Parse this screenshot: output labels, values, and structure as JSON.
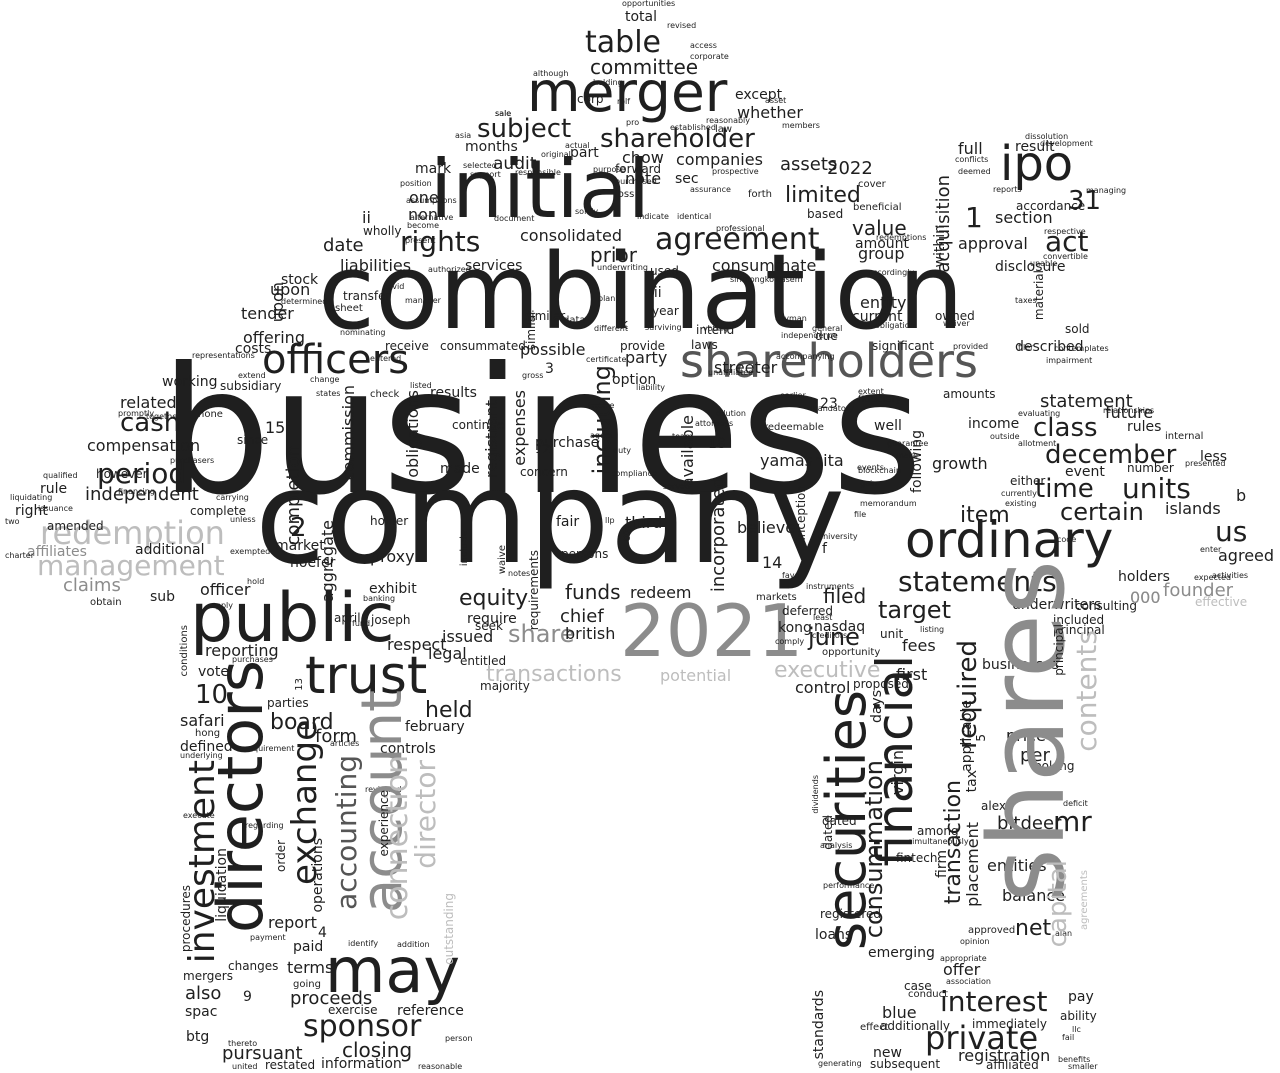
{
  "words": {
    "business": "business",
    "company": "company",
    "combination": "combination",
    "initial": "initial",
    "shares": "shares",
    "merger": "merger",
    "ipo": "ipo",
    "public": "public",
    "y2021": "2021",
    "trust": "trust",
    "may": "may",
    "directors": "directors",
    "account": "account",
    "securities": "securities",
    "financial": "financial",
    "officers": "officers",
    "shareholders": "shareholders",
    "ordinary": "ordinary",
    "agreement": "agreement",
    "rights": "rights",
    "subject": "subject",
    "shareholder": "shareholder",
    "table": "table",
    "committee": "committee",
    "act": "act",
    "n31": "31",
    "n1": "1",
    "redemption": "redemption",
    "management": "management",
    "period": "period",
    "cash": "cash",
    "units": "units",
    "december": "december",
    "class": "class",
    "time": "time",
    "certain": "certain",
    "item": "item",
    "statements": "statements",
    "sponsor": "sponsor",
    "private": "private",
    "interest": "interest",
    "equity": "equity",
    "share": "share",
    "board": "board",
    "exchange": "exchange",
    "investment": "investment",
    "accounting": "accounting",
    "connection": "connection",
    "director": "director",
    "closing": "closing",
    "proceeds": "proceeds",
    "pursuant": "pursuant",
    "held": "held",
    "funds": "funds",
    "target": "target",
    "june": "june",
    "executive": "executive",
    "transactions": "transactions",
    "potential": "potential",
    "contents": "contents",
    "capital": "capital",
    "required": "required",
    "consummation": "consummation",
    "transaction": "transaction",
    "mr": "mr",
    "value": "value",
    "limited": "limited",
    "n2022": "2022",
    "assets": "assets",
    "audit": "audit",
    "consolidated": "consolidated",
    "date": "date",
    "liabilities": "liabilities",
    "prior": "prior",
    "consummate": "consummate",
    "offering": "offering",
    "compensation": "compensation",
    "independent": "independent",
    "related": "related",
    "working": "working",
    "affiliates": "affiliates",
    "claims": "claims",
    "additional": "additional",
    "officer": "officer",
    "reporting": "reporting",
    "us": "us",
    "including": "including",
    "commission": "commission",
    "obligations": "obligations",
    "possible": "possible",
    "option": "option",
    "purchase": "purchase",
    "registrant": "registrant",
    "expenses": "expenses",
    "available": "available",
    "incorporated": "incorporated",
    "yamashita": "yamashita",
    "nasdaq": "nasdaq",
    "filed": "filed",
    "redeem": "redeem",
    "chief": "chief",
    "british": "british",
    "issued": "issued",
    "legal": "legal",
    "respect": "respect",
    "form": "form",
    "completion": "completion",
    "aggregate": "aggregate",
    "proxy": "proxy",
    "exhibit": "exhibit",
    "market": "market",
    "hoefer": "hoefer",
    "upon": "upon",
    "tender": "tender",
    "costs": "costs",
    "n10": "10",
    "n15": "15",
    "n2": "2",
    "n9": "9",
    "n4": "4",
    "safari": "safari",
    "defined": "defined",
    "operations": "operations",
    "report": "report",
    "paid": "paid",
    "terms": "terms",
    "also": "also",
    "btg": "btg",
    "spac": "spac",
    "mergers": "mergers",
    "changes": "changes",
    "information": "information",
    "restated": "restated",
    "reference": "reference",
    "exercise": "exercise",
    "experience": "experience",
    "outstanding": "outstanding",
    "february": "february",
    "controls": "controls",
    "statement": "statement",
    "future": "future",
    "income": "income",
    "rules": "rules",
    "growth": "growth",
    "islands": "islands",
    "founder": "founder",
    "holders": "holders",
    "agreed": "agreed",
    "event": "event",
    "number": "number",
    "less": "less",
    "underwriters": "underwriters",
    "n000": "000",
    "businesses": "businesses",
    "fees": "fees",
    "first": "first",
    "unit": "unit",
    "applicable": "applicable",
    "tax": "tax",
    "bitdeer": "bitdeer",
    "per": "per",
    "price": "price",
    "placement": "placement",
    "firm": "firm",
    "virgin": "virgin",
    "entities": "entities",
    "balance": "balance",
    "net": "net",
    "loans": "loans",
    "emerging": "emerging",
    "offer": "offer",
    "blue": "blue",
    "new": "new",
    "registration": "registration",
    "standards": "standards",
    "ability": "ability",
    "pay": "pay",
    "control": "control",
    "days": "days",
    "section": "section",
    "approval": "approval",
    "disclosure": "disclosure",
    "acquisition": "acquisition",
    "within": "within",
    "result": "result",
    "full": "full",
    "group": "group",
    "amount": "amount",
    "entity": "entity",
    "current": "current",
    "party": "party",
    "note": "note",
    "chow": "chow",
    "companies": "companies",
    "whether": "whether",
    "except": "except",
    "mark": "mark",
    "one": "one",
    "non": "non",
    "ii": "ii",
    "iii": "iii",
    "stock": "stock",
    "services": "services",
    "sec": "sec",
    "part": "part",
    "months": "months",
    "corp": "corp",
    "total": "total",
    "transfer": "transfer",
    "results": "results",
    "receive": "receive",
    "consummated": "consummated",
    "made": "made",
    "continue": "continue",
    "third": "third",
    "streeter": "streeter",
    "believe": "believe",
    "described": "described",
    "provide": "provide",
    "laws": "laws",
    "due": "due",
    "significant": "significant",
    "owned": "owned",
    "kong": "kong",
    "deferred": "deferred",
    "dated": "dated",
    "proposed": "proposed",
    "following": "following",
    "material": "material",
    "looking": "looking",
    "among": "among",
    "case": "case",
    "conduct": "conduct",
    "pay2": "payable",
    "well": "well",
    "amounts": "amounts",
    "sold": "sold",
    "accordance": "accordance",
    "based": "based",
    "used": "used",
    "year": "year",
    "rule": "rule",
    "amended": "amended",
    "right": "right",
    "complete": "complete",
    "however": "however",
    "since": "since",
    "sub": "sub",
    "vote": "vote",
    "parties": "parties",
    "hong": "hong",
    "require": "require",
    "april": "april",
    "joseph": "joseph",
    "holder": "holder",
    "seek": "seek",
    "entitled": "entitled",
    "majority": "majority",
    "liquidation": "liquidation",
    "procedures": "procedures",
    "order": "order",
    "conditions": "conditions",
    "subsidiary": "subsidiary",
    "n3": "3",
    "n8": "8",
    "n12": "12",
    "n14": "14",
    "n18": "18",
    "n23": "23",
    "n5": "5",
    "n13": "13",
    "f": "f",
    "k": "k",
    "b": "b",
    "effective": "effective",
    "consulting": "consulting",
    "included": "included",
    "principal": "principal",
    "agreements": "agreements",
    "fintech": "fintech",
    "alex": "alex",
    "mandatory": "mandatory",
    "registered": "registered",
    "immediately": "immediately",
    "affiliated": "affiliated",
    "subsequent": "subsequent",
    "additionally": "additionally",
    "effect": "effect",
    "markets": "markets",
    "fair": "fair",
    "requirements": "requirements",
    "waive": "waive",
    "include": "include",
    "persons": "persons",
    "concern": "concern",
    "fiduciary": "fiduciary",
    "inception": "inception",
    "opportunity": "opportunity",
    "redeemable": "redeemable",
    "intend": "intend",
    "forward": "forward",
    "loss": "loss",
    "forth": "forth",
    "beneficial": "beneficial",
    "cover": "cover",
    "purchases": "purchases",
    "opportunities": "opportunities",
    "revised": "revised",
    "access": "access",
    "corporate": "corporate",
    "holding": "holding",
    "members": "members",
    "asset": "asset",
    "law": "law",
    "reasonably": "reasonably",
    "established": "established",
    "sale": "sale",
    "asia": "asia",
    "although": "although",
    "data": "data",
    "similar": "similar",
    "manager": "manager",
    "sheet": "sheet",
    "nominating": "nominating",
    "entered": "entered",
    "check": "check",
    "banking": "banking",
    "identify": "identify",
    "addition": "addition",
    "regarding": "regarding",
    "payment": "payment",
    "going": "going",
    "sirimongkolkasem": "sirimongkolkasem",
    "dissolution": "dissolution",
    "conflicts": "conflicts",
    "respective": "respective",
    "taxes": "taxes",
    "provided": "provided",
    "allotment": "allotment",
    "presented": "presented",
    "internal": "internal",
    "outside": "outside",
    "either": "either",
    "currently": "currently",
    "existing": "existing",
    "evaluating": "evaluating",
    "activities": "activities",
    "enter": "enter",
    "obtain": "obtain",
    "execute": "execute",
    "articles": "articles",
    "requirement": "requirement",
    "underlying": "underlying",
    "deficit": "deficit",
    "performance": "performance",
    "approved": "approved",
    "opinion": "opinion",
    "association": "association",
    "appropriate": "appropriate",
    "simultaneously": "simultaneously",
    "analysis": "analysis",
    "dividends": "dividends",
    "generating": "generating",
    "united": "united",
    "thereto": "thereto",
    "person": "person",
    "reasonable": "reasonable",
    "fund": "fund",
    "notes": "notes",
    "listing": "listing",
    "memorandum": "memorandum",
    "creditors": "creditors",
    "events": "events",
    "file": "file",
    "accordingly": "accordingly",
    "extent": "extent",
    "earlier": "earlier",
    "guarantee": "guarantee",
    "unaffiliated": "unaffiliated",
    "voting": "voting",
    "cayman": "cayman",
    "certificate": "certificate",
    "directly": "directly",
    "liability": "liability",
    "compliance": "compliance",
    "team": "team",
    "duty": "duty",
    "served": "served",
    "purpose": "purpose",
    "solely": "solely",
    "prospective": "prospective",
    "purchased": "purchased",
    "assurance": "assurance",
    "indicate": "indicate",
    "identical": "identical",
    "professional": "professional",
    "underwriting": "underwriting",
    "authorized": "authorized",
    "plan": "plan",
    "wholly": "wholly",
    "position": "position",
    "support": "support",
    "selected": "selected",
    "actual": "actual",
    "responsible": "responsible",
    "original": "original",
    "document": "document",
    "present": "present",
    "become": "become",
    "assumptions": "assumptions",
    "alternative": "alternative",
    "deemed": "deemed",
    "convertible": "convertible",
    "unable": "unable",
    "managing": "managing",
    "reports": "reports",
    "development": "development",
    "redemptions": "redemptions",
    "obligation": "obligation",
    "waiver": "waiver",
    "surviving": "surviving",
    "different": "different",
    "independence": "independence",
    "general": "general",
    "twelve": "twelve",
    "dilution": "dilution",
    "blockchain": "blockchain",
    "make": "make",
    "instruments": "instruments",
    "favor": "favor",
    "university": "university",
    "least": "least",
    "comply": "comply",
    "accompanying": "accompanying",
    "experience2": "meeting",
    "filer": "filer",
    "code": "code",
    "expected": "expected",
    "relationships": "relationships",
    "contemplates": "contemplates",
    "impairment": "impairment",
    "fail": "fail",
    "benefits": "benefits",
    "smaller": "smaller",
    "llc": "llc",
    "alan": "alan",
    "certain2": "entire",
    "gross": "gross",
    "attorneys": "attorneys",
    "gain": "gain",
    "rolf": "rolf",
    "llp": "llp",
    "pro": "pro",
    "agent": "agent",
    "carrying": "carrying",
    "financing": "financing",
    "purchasers": "purchasers",
    "unless": "unless",
    "exempted": "exempted",
    "hold": "hold",
    "charter": "charter",
    "two": "two",
    "qualified": "qualified",
    "liquidating": "liquidating",
    "issuance": "issuance",
    "apply": "apply",
    "extend": "extend",
    "representations": "representations",
    "reviewed": "reviewed",
    "change": "change",
    "promptly": "promptly",
    "together": "together",
    "none": "none",
    "listed": "listed",
    "determined": "determined",
    "covid": "covid",
    "states": "states"
  }
}
